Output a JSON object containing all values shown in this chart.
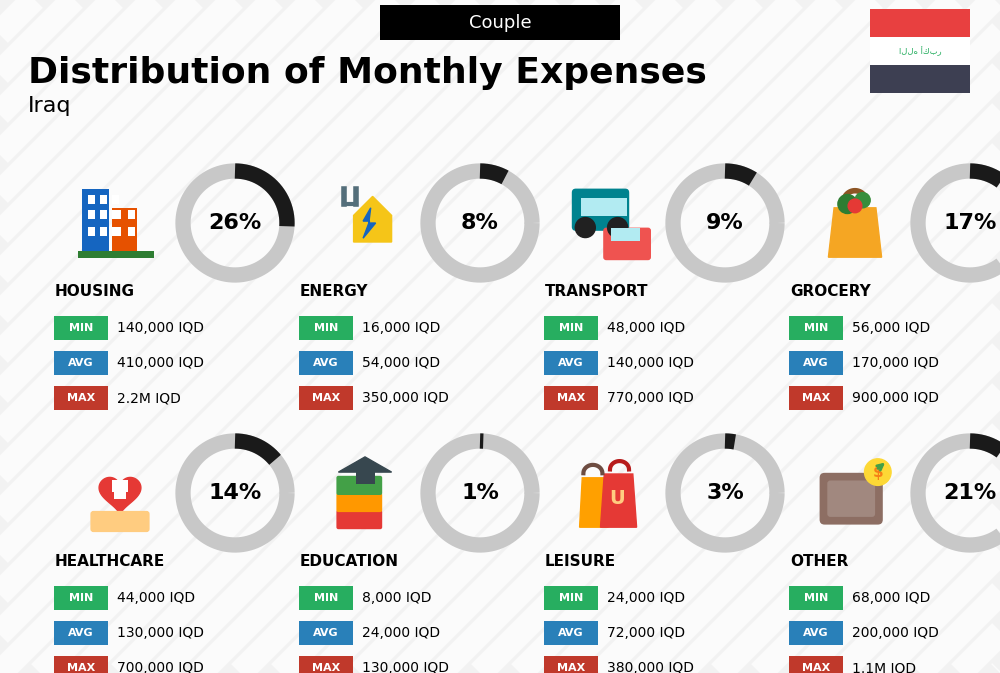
{
  "title": "Distribution of Monthly Expenses",
  "subtitle": "Couple",
  "country": "Iraq",
  "bg_color": "#f2f2f2",
  "categories": [
    {
      "name": "HOUSING",
      "pct": 26,
      "col": 0,
      "row": 0,
      "min": "140,000 IQD",
      "avg": "410,000 IQD",
      "max": "2.2M IQD"
    },
    {
      "name": "ENERGY",
      "pct": 8,
      "col": 1,
      "row": 0,
      "min": "16,000 IQD",
      "avg": "54,000 IQD",
      "max": "350,000 IQD"
    },
    {
      "name": "TRANSPORT",
      "pct": 9,
      "col": 2,
      "row": 0,
      "min": "48,000 IQD",
      "avg": "140,000 IQD",
      "max": "770,000 IQD"
    },
    {
      "name": "GROCERY",
      "pct": 17,
      "col": 3,
      "row": 0,
      "min": "56,000 IQD",
      "avg": "170,000 IQD",
      "max": "900,000 IQD"
    },
    {
      "name": "HEALTHCARE",
      "pct": 14,
      "col": 0,
      "row": 1,
      "min": "44,000 IQD",
      "avg": "130,000 IQD",
      "max": "700,000 IQD"
    },
    {
      "name": "EDUCATION",
      "pct": 1,
      "col": 1,
      "row": 1,
      "min": "8,000 IQD",
      "avg": "24,000 IQD",
      "max": "130,000 IQD"
    },
    {
      "name": "LEISURE",
      "pct": 3,
      "col": 2,
      "row": 1,
      "min": "24,000 IQD",
      "avg": "72,000 IQD",
      "max": "380,000 IQD"
    },
    {
      "name": "OTHER",
      "pct": 21,
      "col": 3,
      "row": 1,
      "min": "68,000 IQD",
      "avg": "200,000 IQD",
      "max": "1.1M IQD"
    }
  ],
  "color_min": "#27ae60",
  "color_avg": "#2980b9",
  "color_max": "#c0392b",
  "flag_red": "#e84040",
  "flag_dark": "#3d3f52",
  "stripe_color": "#e8e8e8",
  "donut_bg": "#c8c8c8",
  "donut_fg": "#1a1a1a"
}
